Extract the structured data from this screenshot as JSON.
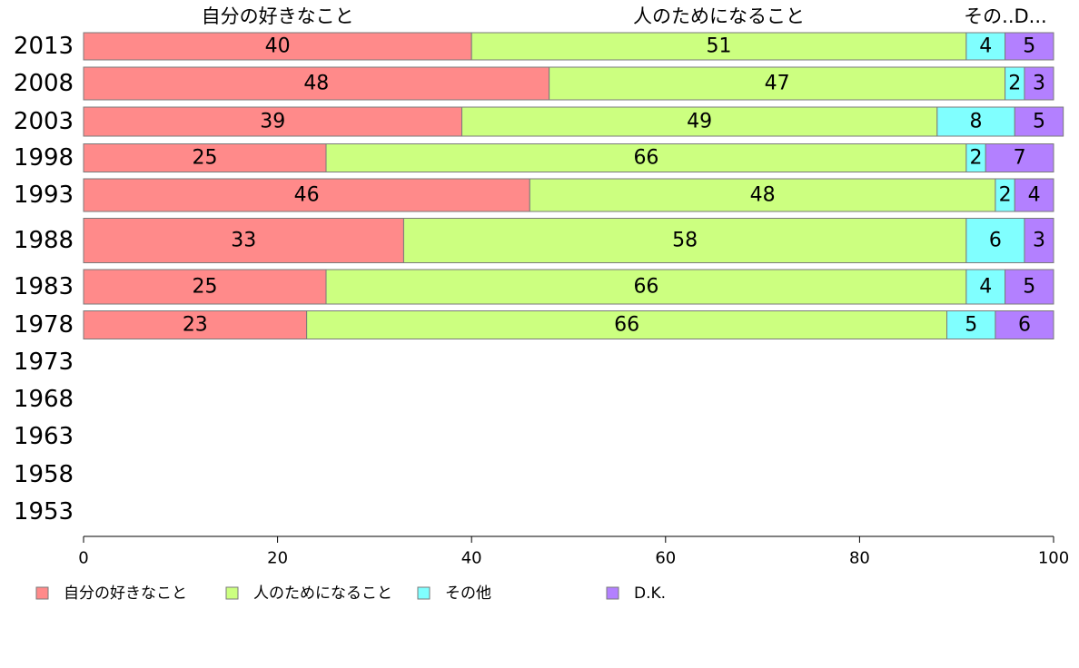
{
  "chart_data": {
    "type": "bar",
    "orientation": "horizontal",
    "stacked": true,
    "categories": [
      "2013",
      "2008",
      "2003",
      "1998",
      "1993",
      "1988",
      "1983",
      "1978",
      "1973",
      "1968",
      "1963",
      "1958",
      "1953"
    ],
    "series": [
      {
        "name": "自分の好きなこと",
        "color": "#ff8a8a",
        "values": [
          40,
          48,
          39,
          25,
          46,
          33,
          25,
          23,
          null,
          null,
          null,
          null,
          null
        ]
      },
      {
        "name": "人のためになること",
        "color": "#ccff80",
        "values": [
          51,
          47,
          49,
          66,
          48,
          58,
          66,
          66,
          null,
          null,
          null,
          null,
          null
        ]
      },
      {
        "name": "その他",
        "color": "#80ffff",
        "values": [
          4,
          2,
          8,
          2,
          2,
          6,
          4,
          5,
          null,
          null,
          null,
          null,
          null
        ]
      },
      {
        "name": "D.K.",
        "color": "#b380ff",
        "values": [
          5,
          3,
          5,
          7,
          4,
          3,
          5,
          6,
          null,
          null,
          null,
          null,
          null
        ]
      }
    ],
    "series_headers": [
      "自分の好きなこと",
      "人のためになること",
      "その..D..."
    ],
    "xlim": [
      0,
      100
    ],
    "xticks": [
      0,
      20,
      40,
      60,
      80,
      100
    ],
    "legend_position": "bottom",
    "grid": false
  }
}
